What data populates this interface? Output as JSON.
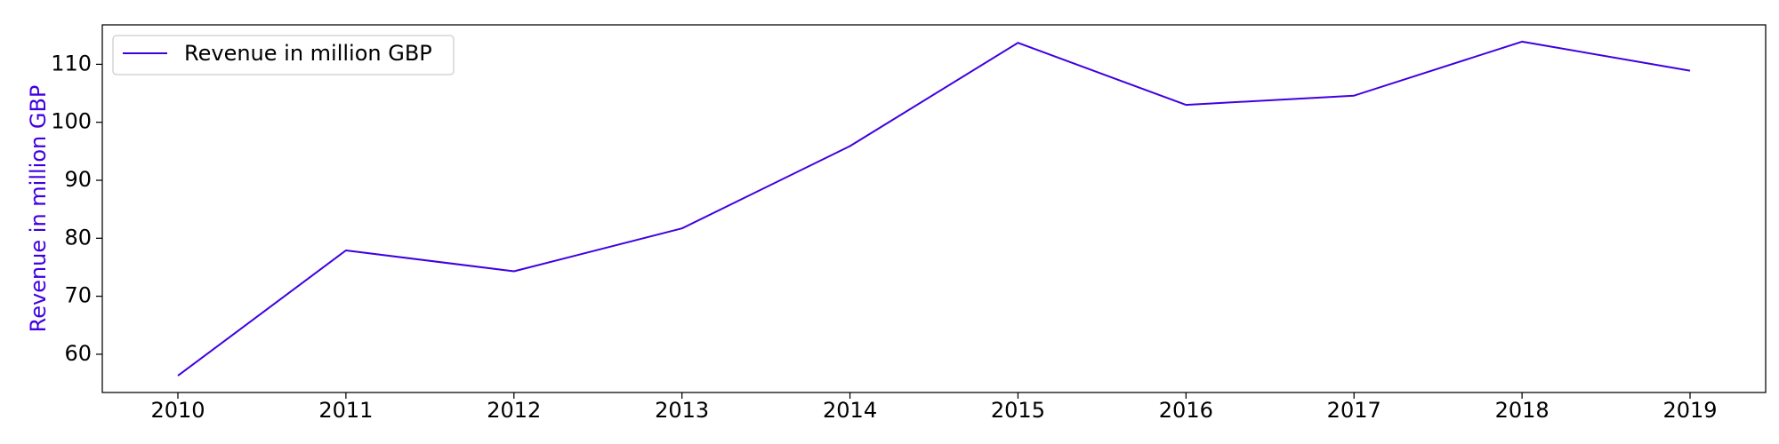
{
  "chart_data": {
    "type": "line",
    "title": "",
    "xlabel": "",
    "ylabel": "Revenue in million GBP",
    "x": [
      "2010",
      "2011",
      "2012",
      "2013",
      "2014",
      "2015",
      "2016",
      "2017",
      "2018",
      "2019"
    ],
    "series": [
      {
        "name": "Revenue in million GBP",
        "color": "#3f00e0",
        "values": [
          56.3,
          77.9,
          74.3,
          81.7,
          95.9,
          113.7,
          103.0,
          104.6,
          113.9,
          108.9
        ]
      }
    ],
    "ylim": [
      53.4,
      116.8
    ],
    "yticks": [
      60,
      70,
      80,
      90,
      100,
      110
    ],
    "grid": false,
    "legend": "top-left"
  }
}
